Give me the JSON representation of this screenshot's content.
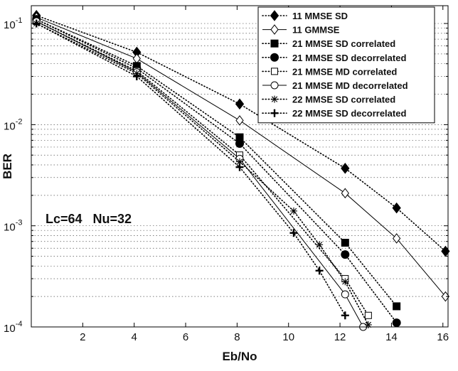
{
  "chart_data": {
    "type": "line",
    "xlabel": "Eb/No",
    "ylabel": "BER",
    "xlim": [
      0,
      16.2
    ],
    "ylim": [
      0.0001,
      0.15
    ],
    "yscale": "log",
    "grid": "y-minor-dotted",
    "legend_position": "top-right",
    "xticks": [
      "2",
      "4",
      "6",
      "8",
      "10",
      "12",
      "14",
      "16"
    ],
    "yticks": [
      {
        "value": 0.1,
        "base": "10",
        "exp": "-1"
      },
      {
        "value": 0.01,
        "base": "10",
        "exp": "-2"
      },
      {
        "value": 0.001,
        "base": "10",
        "exp": "-3"
      },
      {
        "value": 0.0001,
        "base": "10",
        "exp": "-4"
      }
    ],
    "annotation": "Lc=64   Nu=32",
    "series": [
      {
        "name": "11  MMSE SD",
        "marker": "diamond-filled",
        "line": "dotted",
        "x": [
          0.2,
          4.1,
          8.1,
          12.2,
          14.2,
          16.1
        ],
        "y": [
          0.12,
          0.052,
          0.016,
          0.0037,
          0.0015,
          0.00056
        ]
      },
      {
        "name": "11  GMMSE",
        "marker": "diamond-open",
        "line": "solid",
        "x": [
          0.2,
          4.1,
          8.1,
          12.2,
          14.2,
          16.1
        ],
        "y": [
          0.115,
          0.045,
          0.011,
          0.0021,
          0.00075,
          0.0002
        ]
      },
      {
        "name": "21  MMSE SD correlated",
        "marker": "square-filled",
        "line": "dotted",
        "x": [
          0.2,
          4.1,
          8.1,
          12.2,
          14.2
        ],
        "y": [
          0.11,
          0.038,
          0.0075,
          0.00068,
          0.00016
        ]
      },
      {
        "name": "21  MMSE SD decorrelated",
        "marker": "circle-filled",
        "line": "dotted",
        "x": [
          0.2,
          4.1,
          8.1,
          12.2,
          14.2
        ],
        "y": [
          0.11,
          0.036,
          0.0065,
          0.00052,
          0.00011
        ]
      },
      {
        "name": "21  MMSE MD correlated",
        "marker": "square-open",
        "line": "dotted",
        "x": [
          0.2,
          4.1,
          8.1,
          12.2,
          13.1
        ],
        "y": [
          0.105,
          0.034,
          0.005,
          0.0003,
          0.00013
        ]
      },
      {
        "name": "21  MMSE MD decorrelated",
        "marker": "circle-open",
        "line": "solid",
        "x": [
          0.2,
          4.1,
          8.1,
          12.2,
          12.9
        ],
        "y": [
          0.105,
          0.033,
          0.0046,
          0.00021,
          0.0001
        ]
      },
      {
        "name": "22  MMSE SD correlated",
        "marker": "star",
        "line": "dotted",
        "x": [
          0.2,
          4.1,
          8.1,
          10.2,
          11.2,
          12.2,
          13.1
        ],
        "y": [
          0.1,
          0.032,
          0.0043,
          0.0014,
          0.00065,
          0.00028,
          0.000105
        ]
      },
      {
        "name": "22  MMSE SD decorrelated",
        "marker": "plus",
        "line": "dotted",
        "x": [
          0.2,
          4.1,
          8.1,
          10.2,
          11.2,
          12.2
        ],
        "y": [
          0.1,
          0.03,
          0.0038,
          0.00085,
          0.00036,
          0.00013
        ]
      }
    ]
  }
}
